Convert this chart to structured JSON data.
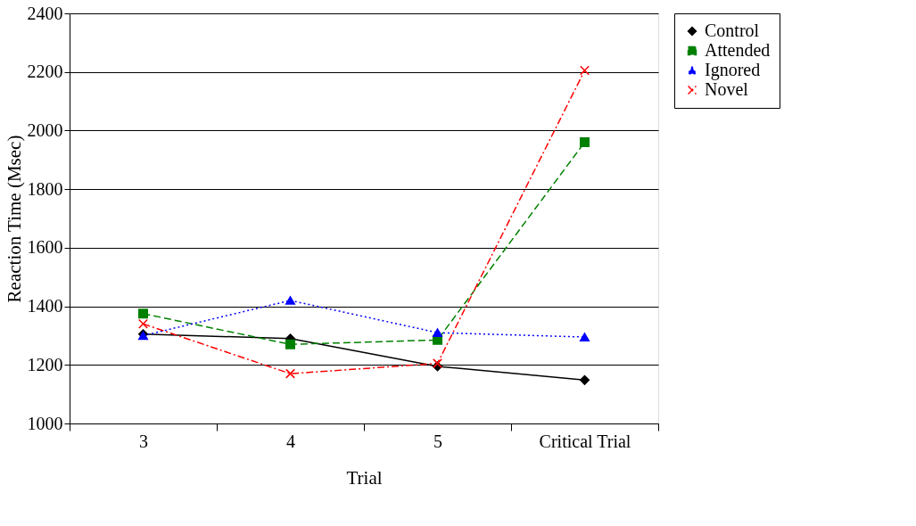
{
  "chart_data": {
    "type": "line",
    "xlabel": "Trial",
    "ylabel": "Reaction Time (Msec)",
    "categories": [
      "3",
      "4",
      "5",
      "Critical Trial"
    ],
    "series": [
      {
        "name": "Control",
        "color": "#000000",
        "marker": "diamond",
        "line_style": "solid",
        "values": [
          1305,
          1290,
          1195,
          1148
        ]
      },
      {
        "name": "Attended",
        "color": "#008000",
        "marker": "square",
        "line_style": "dashed",
        "values": [
          1375,
          1270,
          1285,
          1960
        ]
      },
      {
        "name": "Ignored",
        "color": "#0000ff",
        "marker": "triangle",
        "line_style": "dotted",
        "values": [
          1300,
          1420,
          1310,
          1295
        ]
      },
      {
        "name": "Novel",
        "color": "#ff0000",
        "marker": "cross",
        "line_style": "dashdot",
        "values": [
          1340,
          1170,
          1205,
          2205
        ]
      }
    ],
    "ylim": [
      1000,
      2400
    ],
    "yticks": [
      1000,
      1200,
      1400,
      1600,
      1800,
      2000,
      2200,
      2400
    ],
    "grid": "y",
    "legend": "right"
  }
}
